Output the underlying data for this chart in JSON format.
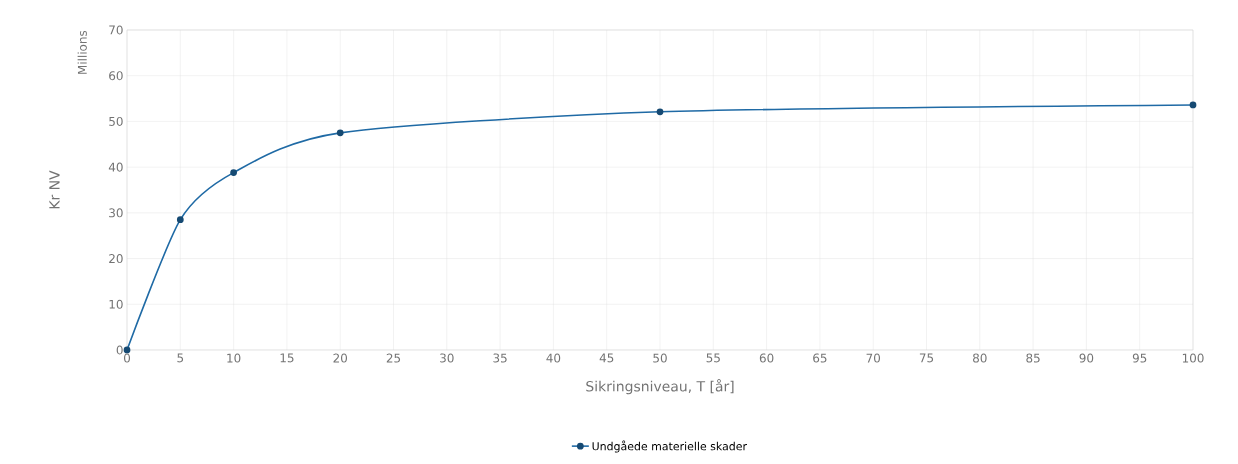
{
  "chart_data": {
    "type": "line",
    "xlabel": "Sikringsniveau, T [år]",
    "ylabel": "Kr NV",
    "annotations": [
      "Millions"
    ],
    "x": [
      0,
      5,
      10,
      20,
      50,
      100
    ],
    "series": [
      {
        "name": "Undgåede materielle skader",
        "color": "#1f6aa5",
        "values": [
          0,
          28.5,
          38.8,
          47.5,
          52.1,
          53.6
        ]
      }
    ],
    "xlim": [
      0,
      100
    ],
    "xticks": [
      0,
      5,
      10,
      15,
      20,
      25,
      30,
      35,
      40,
      45,
      50,
      55,
      60,
      65,
      70,
      75,
      80,
      85,
      90,
      95,
      100
    ],
    "ylim": [
      0,
      70
    ],
    "yticks": [
      0,
      10,
      20,
      30,
      40,
      50,
      60,
      70
    ],
    "grid": true,
    "legend": "bottom",
    "marker": "circle",
    "line_style": "solid"
  }
}
